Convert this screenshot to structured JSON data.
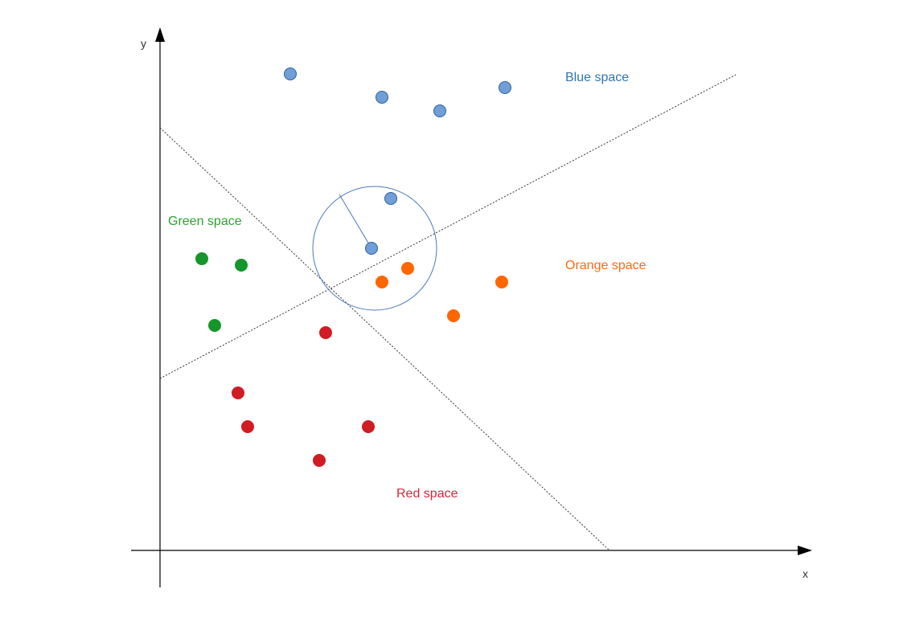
{
  "axes": {
    "x_label": "x",
    "y_label": "y"
  },
  "regions": [
    {
      "key": "blue",
      "label": "Blue space",
      "color": "#2e75b6"
    },
    {
      "key": "green",
      "label": "Green space",
      "color": "#2ea02e"
    },
    {
      "key": "orange",
      "label": "Orange space",
      "color": "#ff6a10"
    },
    {
      "key": "red",
      "label": "Red space",
      "color": "#d7263d"
    }
  ],
  "point_colors": {
    "blue": {
      "fill": "#6f9fd6",
      "stroke": "#2f5f9f"
    },
    "green": {
      "fill": "#15962a",
      "stroke": "#15962a"
    },
    "orange": {
      "fill": "#ff6600",
      "stroke": "#ff6600"
    },
    "red": {
      "fill": "#d01c22",
      "stroke": "#d01c22"
    }
  },
  "neighborhood": {
    "color": "#4a78b8",
    "description_icon": "radius-circle"
  }
}
